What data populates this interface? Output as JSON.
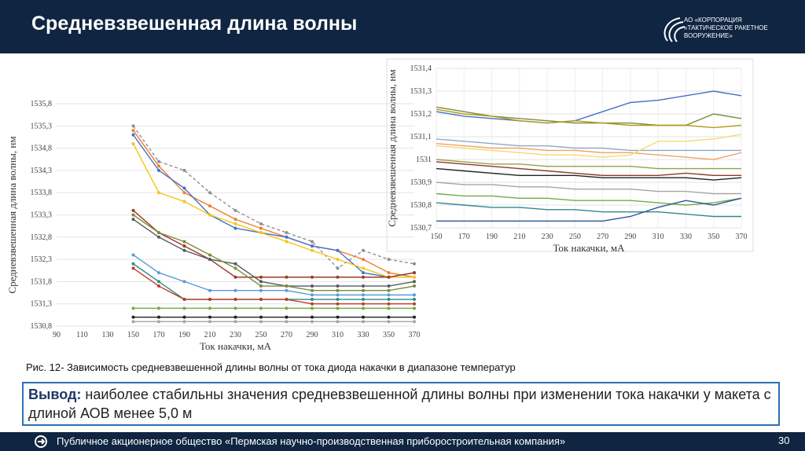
{
  "header": {
    "title": "Средневзвешенная длина волны",
    "logo": [
      "АО «КОРПОРАЦИЯ",
      "«ТАКТИЧЕСКОЕ РАКЕТНОЕ",
      "ВООРУЖЕНИЕ»"
    ]
  },
  "chart_data": [
    {
      "type": "line",
      "x_label": "Ток накачки, мА",
      "y_label": "Средневзвешенная длина волны, нм",
      "x": [
        150,
        170,
        190,
        210,
        230,
        250,
        270,
        290,
        310,
        330,
        350,
        370
      ],
      "xlim": [
        90,
        370
      ],
      "xticks": [
        90,
        110,
        130,
        150,
        170,
        190,
        210,
        230,
        250,
        270,
        290,
        310,
        330,
        350,
        370
      ],
      "ylim": [
        1530.8,
        1535.8
      ],
      "yticks": [
        {
          "value": 1530.8,
          "label": "1530,8"
        },
        {
          "value": 1531.3,
          "label": "1531,3"
        },
        {
          "value": 1531.8,
          "label": "1531,8"
        },
        {
          "value": 1532.3,
          "label": "1532,3"
        },
        {
          "value": 1532.8,
          "label": "1532,8"
        },
        {
          "value": 1533.3,
          "label": "1533,3"
        },
        {
          "value": 1533.8,
          "label": "1533,8"
        },
        {
          "value": 1534.3,
          "label": "1534,3"
        },
        {
          "value": 1534.8,
          "label": "1534,8"
        },
        {
          "value": 1535.3,
          "label": "1535,3"
        },
        {
          "value": 1535.8,
          "label": "1535,8"
        }
      ],
      "grid": true,
      "markers": true,
      "series": [
        {
          "color": "#8a8f99",
          "dashed": true,
          "values": [
            1535.3,
            1534.5,
            1534.3,
            1533.8,
            1533.4,
            1533.1,
            1532.9,
            1532.7,
            1532.1,
            1532.5,
            1532.3,
            1532.2
          ]
        },
        {
          "color": "#ed7d31",
          "values": [
            1535.2,
            1534.4,
            1533.8,
            1533.5,
            1533.2,
            1533.0,
            1532.8,
            1532.6,
            1532.5,
            1532.3,
            1532.0,
            1531.9
          ]
        },
        {
          "color": "#4472c4",
          "values": [
            1535.1,
            1534.3,
            1533.9,
            1533.3,
            1533.0,
            1532.9,
            1532.8,
            1532.6,
            1532.5,
            1532.0,
            1531.9,
            1532.0
          ]
        },
        {
          "color": "#f5c518",
          "values": [
            1534.9,
            1533.8,
            1533.6,
            1533.3,
            1533.1,
            1532.9,
            1532.7,
            1532.5,
            1532.3,
            1532.1,
            1531.9,
            1531.9
          ]
        },
        {
          "color": "#9e3a26",
          "values": [
            1533.4,
            1532.9,
            1532.6,
            1532.3,
            1531.9,
            1531.9,
            1531.9,
            1531.9,
            1531.9,
            1531.9,
            1531.9,
            1532.0
          ]
        },
        {
          "color": "#555a60",
          "values": [
            1533.2,
            1532.8,
            1532.5,
            1532.3,
            1532.2,
            1531.8,
            1531.7,
            1531.7,
            1531.7,
            1531.7,
            1531.7,
            1531.8
          ]
        },
        {
          "color": "#7a8c3a",
          "values": [
            1533.3,
            1532.9,
            1532.7,
            1532.4,
            1532.1,
            1531.7,
            1531.7,
            1531.6,
            1531.6,
            1531.6,
            1531.6,
            1531.7
          ]
        },
        {
          "color": "#5b9bd5",
          "values": [
            1532.4,
            1532.0,
            1531.8,
            1531.6,
            1531.6,
            1531.6,
            1531.6,
            1531.5,
            1531.5,
            1531.5,
            1531.5,
            1531.5
          ]
        },
        {
          "color": "#2e8b8b",
          "values": [
            1532.2,
            1531.8,
            1531.4,
            1531.4,
            1531.4,
            1531.4,
            1531.4,
            1531.4,
            1531.4,
            1531.4,
            1531.4,
            1531.4
          ]
        },
        {
          "color": "#c0392b",
          "values": [
            1532.1,
            1531.7,
            1531.4,
            1531.4,
            1531.4,
            1531.4,
            1531.4,
            1531.3,
            1531.3,
            1531.3,
            1531.3,
            1531.3
          ]
        },
        {
          "color": "#70ad47",
          "values": [
            1531.2,
            1531.2,
            1531.2,
            1531.2,
            1531.2,
            1531.2,
            1531.2,
            1531.2,
            1531.2,
            1531.2,
            1531.2,
            1531.2
          ]
        },
        {
          "color": "#222222",
          "values": [
            1531.0,
            1531.0,
            1531.0,
            1531.0,
            1531.0,
            1531.0,
            1531.0,
            1531.0,
            1531.0,
            1531.0,
            1531.0,
            1531.0
          ]
        },
        {
          "color": "#a5a5a5",
          "values": [
            1530.9,
            1530.9,
            1530.9,
            1530.9,
            1530.9,
            1530.9,
            1530.9,
            1530.9,
            1530.9,
            1530.9,
            1530.9,
            1530.9
          ]
        }
      ]
    },
    {
      "type": "line",
      "x_label": "Ток накачки, мА",
      "y_label": "Средневзвешенная длина волны, нм",
      "x": [
        150,
        170,
        190,
        210,
        230,
        250,
        270,
        290,
        310,
        330,
        350,
        370
      ],
      "xlim": [
        150,
        370
      ],
      "xticks": [
        150,
        170,
        190,
        210,
        230,
        250,
        270,
        290,
        310,
        330,
        350,
        370
      ],
      "ylim": [
        1530.7,
        1531.4
      ],
      "yticks": [
        {
          "value": 1530.7,
          "label": "1530,7"
        },
        {
          "value": 1530.8,
          "label": "1530,8"
        },
        {
          "value": 1530.9,
          "label": "1530,9"
        },
        1531,
        {
          "value": 1531.1,
          "label": "1531,1"
        },
        {
          "value": 1531.2,
          "label": "1531,2"
        },
        {
          "value": 1531.3,
          "label": "1531,3"
        },
        {
          "value": 1531.4,
          "label": "1531,4"
        }
      ],
      "grid": true,
      "markers": false,
      "series": [
        {
          "color": "#4472c4",
          "values": [
            1531.21,
            1531.19,
            1531.18,
            1531.17,
            1531.16,
            1531.17,
            1531.21,
            1531.25,
            1531.26,
            1531.28,
            1531.3,
            1531.28
          ]
        },
        {
          "color": "#7a8c3a",
          "values": [
            1531.23,
            1531.21,
            1531.19,
            1531.18,
            1531.17,
            1531.16,
            1531.16,
            1531.16,
            1531.15,
            1531.15,
            1531.2,
            1531.18
          ]
        },
        {
          "color": "#b59a1a",
          "values": [
            1531.22,
            1531.2,
            1531.19,
            1531.17,
            1531.16,
            1531.17,
            1531.16,
            1531.15,
            1531.15,
            1531.15,
            1531.14,
            1531.15
          ]
        },
        {
          "color": "#8ea9c8",
          "values": [
            1531.09,
            1531.08,
            1531.07,
            1531.06,
            1531.06,
            1531.05,
            1531.05,
            1531.04,
            1531.04,
            1531.04,
            1531.04,
            1531.04
          ]
        },
        {
          "color": "#f4a261",
          "values": [
            1531.07,
            1531.06,
            1531.05,
            1531.05,
            1531.04,
            1531.04,
            1531.03,
            1531.03,
            1531.02,
            1531.01,
            1531.0,
            1531.03
          ]
        },
        {
          "color": "#f7d774",
          "values": [
            1531.06,
            1531.05,
            1531.04,
            1531.03,
            1531.02,
            1531.02,
            1531.01,
            1531.02,
            1531.08,
            1531.08,
            1531.09,
            1531.11
          ]
        },
        {
          "color": "#8b3a2a",
          "values": [
            1530.99,
            1530.98,
            1530.97,
            1530.96,
            1530.95,
            1530.94,
            1530.93,
            1530.93,
            1530.93,
            1530.94,
            1530.93,
            1530.93
          ]
        },
        {
          "color": "#9aa04a",
          "values": [
            1531.0,
            1530.99,
            1530.98,
            1530.98,
            1530.97,
            1530.97,
            1530.97,
            1530.97,
            1530.96,
            1530.96,
            1530.96,
            1530.96
          ]
        },
        {
          "color": "#222222",
          "values": [
            1530.96,
            1530.95,
            1530.94,
            1530.93,
            1530.93,
            1530.93,
            1530.92,
            1530.92,
            1530.92,
            1530.92,
            1530.91,
            1530.92
          ]
        },
        {
          "color": "#a5a5a5",
          "values": [
            1530.9,
            1530.89,
            1530.89,
            1530.88,
            1530.88,
            1530.87,
            1530.87,
            1530.87,
            1530.86,
            1530.86,
            1530.85,
            1530.85
          ]
        },
        {
          "color": "#70ad47",
          "values": [
            1530.85,
            1530.84,
            1530.84,
            1530.83,
            1530.83,
            1530.82,
            1530.82,
            1530.82,
            1530.81,
            1530.8,
            1530.81,
            1530.83
          ]
        },
        {
          "color": "#2e8b8b",
          "values": [
            1530.81,
            1530.8,
            1530.79,
            1530.79,
            1530.78,
            1530.78,
            1530.77,
            1530.77,
            1530.77,
            1530.76,
            1530.75,
            1530.75
          ]
        },
        {
          "color": "#2f5597",
          "values": [
            1530.73,
            1530.73,
            1530.73,
            1530.73,
            1530.73,
            1530.73,
            1530.73,
            1530.75,
            1530.79,
            1530.82,
            1530.8,
            1530.83
          ]
        }
      ]
    }
  ],
  "caption": "Рис. 12- Зависимость средневзвешенной длины волны от тока диода накачки в диапазоне температур",
  "conclusion": {
    "label": "Вывод:",
    "text": "наиболее стабильны значения средневзвешенной длины волны при изменении тока накачки у макета с длиной АОВ менее 5,0 м"
  },
  "footer": {
    "text": "Публичное акционерное общество «Пермская научно-производственная приборостроительная компания»",
    "page": "30"
  }
}
